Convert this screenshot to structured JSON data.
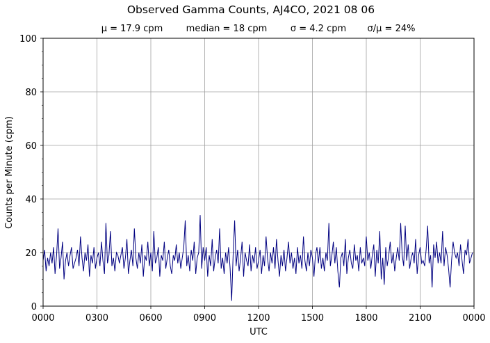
{
  "chart_data": {
    "type": "line",
    "title": "Observed Gamma Counts, AJ4CO, 2021 08 06",
    "subtitle": [
      "μ = 17.9 cpm",
      "median = 18 cpm",
      "σ = 4.2 cpm",
      "σ/μ = 24%"
    ],
    "xlabel": "UTC",
    "ylabel": "Counts per Minute (cpm)",
    "x_tick_labels": [
      "0000",
      "0300",
      "0600",
      "0900",
      "1200",
      "1500",
      "1800",
      "2100",
      "0000"
    ],
    "x_tick_minutes": [
      0,
      180,
      360,
      540,
      720,
      900,
      1080,
      1260,
      1440
    ],
    "xlim_minutes": [
      0,
      1440
    ],
    "y_ticks": [
      0,
      20,
      40,
      60,
      80,
      100
    ],
    "y_minor_step": 5,
    "ylim": [
      0,
      100
    ],
    "grid": true,
    "line_color": "#000080",
    "series": [
      {
        "start": "0000",
        "sample_interval_min": 5,
        "values": [
          17,
          21,
          13,
          18,
          15,
          20,
          16,
          22,
          12,
          19,
          29,
          14,
          18,
          24,
          10,
          17,
          20,
          15,
          19,
          22,
          14,
          16,
          18,
          21,
          15,
          26,
          18,
          13,
          20,
          17,
          23,
          11,
          19,
          16,
          22,
          14,
          18,
          20,
          15,
          24,
          17,
          12,
          31,
          16,
          19,
          28,
          15,
          18,
          13,
          20,
          19,
          16,
          19,
          22,
          14,
          18,
          25,
          12,
          17,
          21,
          15,
          29,
          18,
          14,
          20,
          16,
          23,
          11,
          19,
          17,
          24,
          15,
          20,
          13,
          28,
          16,
          18,
          22,
          11,
          19,
          17,
          24,
          14,
          18,
          21,
          15,
          12,
          19,
          17,
          23,
          16,
          20,
          14,
          18,
          22,
          32,
          15,
          19,
          13,
          21,
          17,
          24,
          12,
          18,
          20,
          34,
          14,
          22,
          17,
          22,
          11,
          19,
          15,
          25,
          13,
          18,
          21,
          16,
          29,
          14,
          18,
          12,
          20,
          16,
          22,
          14,
          2,
          19,
          32,
          15,
          21,
          13,
          18,
          24,
          11,
          20,
          17,
          15,
          23,
          13,
          19,
          16,
          22,
          14,
          17,
          21,
          12,
          19,
          15,
          26,
          18,
          13,
          20,
          16,
          22,
          14,
          25,
          17,
          11,
          19,
          15,
          21,
          13,
          18,
          24,
          16,
          20,
          14,
          18,
          12,
          22,
          16,
          19,
          14,
          26,
          17,
          13,
          20,
          15,
          21,
          18,
          11,
          19,
          22,
          16,
          22,
          14,
          18,
          13,
          20,
          17,
          31,
          15,
          19,
          24,
          16,
          22,
          13,
          7,
          18,
          20,
          15,
          25,
          12,
          18,
          21,
          16,
          14,
          23,
          17,
          19,
          13,
          22,
          16,
          18,
          15,
          26,
          17,
          20,
          14,
          19,
          23,
          11,
          21,
          16,
          28,
          10,
          18,
          8,
          22,
          15,
          19,
          24,
          16,
          20,
          13,
          18,
          22,
          17,
          31,
          19,
          15,
          30,
          17,
          23,
          14,
          18,
          20,
          16,
          25,
          12,
          19,
          22,
          16,
          17,
          15,
          21,
          30,
          16,
          19,
          7,
          23,
          18,
          24,
          16,
          20,
          16,
          28,
          15,
          22,
          19,
          14,
          7,
          17,
          24,
          20,
          18,
          20,
          15,
          23,
          17,
          12,
          21,
          19,
          25,
          16,
          18,
          20
        ]
      }
    ]
  }
}
